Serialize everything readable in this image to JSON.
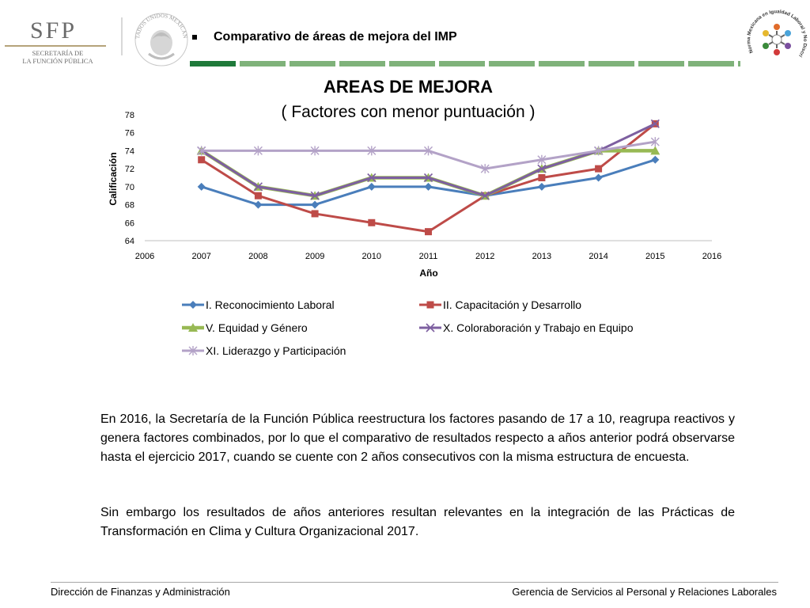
{
  "header": {
    "sfp_logo_text": "SFP",
    "sfp_logo_sub1": "SECRETARÍA DE",
    "sfp_logo_sub2": "LA FUNCIÓN PÚBLICA",
    "seal_text": "ESTADOS UNIDOS MEXICANOS",
    "title": "Comparativo de áreas de mejora del IMP",
    "norm_logo_text": "Norma Mexicana en Igualdad Laboral y No Discriminación",
    "stripe_color": "#7fb27a",
    "stripe_accent": "#1f7a3a"
  },
  "chart_data": {
    "type": "line",
    "title": "AREAS DE MEJORA",
    "subtitle": "( Factores con menor puntuación )",
    "xlabel": "Año",
    "ylabel": "Calificación",
    "xlim": [
      2006,
      2016
    ],
    "ylim": [
      64,
      78
    ],
    "x_ticks": [
      2006,
      2007,
      2008,
      2009,
      2010,
      2011,
      2012,
      2013,
      2014,
      2015,
      2016
    ],
    "y_ticks": [
      64,
      66,
      68,
      70,
      72,
      74,
      76,
      78
    ],
    "x": [
      2007,
      2008,
      2009,
      2010,
      2011,
      2012,
      2013,
      2014,
      2015
    ],
    "grid": false,
    "legend_position": "bottom",
    "series": [
      {
        "name": "I. Reconocimiento Laboral",
        "color": "#4a7ebb",
        "marker": "diamond",
        "values": [
          70,
          68,
          68,
          70,
          70,
          69,
          70,
          71,
          73
        ]
      },
      {
        "name": "II. Capacitación y Desarrollo",
        "color": "#be4b48",
        "marker": "square",
        "values": [
          73,
          69,
          67,
          66,
          65,
          69,
          71,
          72,
          77
        ]
      },
      {
        "name": "V. Equidad y Género",
        "color": "#98b954",
        "marker": "triangle",
        "values": [
          74,
          70,
          69,
          71,
          71,
          69,
          72,
          74,
          74
        ]
      },
      {
        "name": "X. Coloraboración y Trabajo en Equipo",
        "color": "#7d5fa0",
        "marker": "x",
        "values": [
          74,
          70,
          69,
          71,
          71,
          69,
          72,
          74,
          77
        ]
      },
      {
        "name": "XI. Liderazgo y Participación",
        "color": "#b3a2c7",
        "marker": "star",
        "values": [
          74,
          74,
          74,
          74,
          74,
          72,
          73,
          74,
          75
        ]
      }
    ]
  },
  "body": {
    "paragraph1": "En 2016, la Secretaría de la Función Pública reestructura los factores pasando de 17 a 10, reagrupa reactivos y genera factores combinados, por lo que el comparativo de resultados respecto a años anterior podrá observarse hasta el ejercicio 2017, cuando se cuente con 2 años consecutivos con la misma estructura de encuesta.",
    "paragraph2": "Sin embargo los resultados de años anteriores resultan relevantes en la integración de las Prácticas de Transformación en Clima y Cultura Organizacional 2017."
  },
  "footer": {
    "left": "Dirección de Finanzas y Administración",
    "right": "Gerencia de Servicios al Personal y Relaciones Laborales"
  }
}
